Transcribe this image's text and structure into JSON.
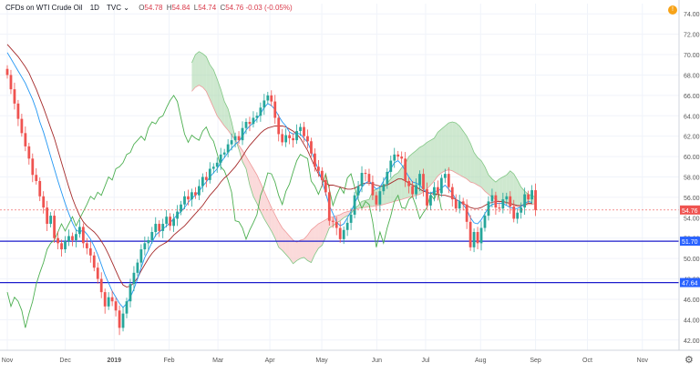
{
  "header": {
    "symbol": "CFDs on WTI Crude Oil",
    "interval": "1D",
    "source": "TVC",
    "open_label": "O",
    "open": "54.78",
    "high_label": "H",
    "high": "54.84",
    "low_label": "L",
    "low": "54.74",
    "close_label": "C",
    "close": "54.76",
    "change": "-0.03 (-0.05%)",
    "alert_badge": "!"
  },
  "chart_data": {
    "type": "candlestick",
    "ylim": [
      41,
      75
    ],
    "xlim": [
      0,
      104
    ],
    "y_ticks": [
      "74.00",
      "72.00",
      "70.00",
      "68.00",
      "66.00",
      "64.00",
      "62.00",
      "60.00",
      "58.00",
      "56.00",
      "54.00",
      "52.00",
      "50.00",
      "48.00",
      "46.00",
      "44.00",
      "42.00"
    ],
    "x_ticks": [
      {
        "label": "Nov",
        "x": 0
      },
      {
        "label": "Dec",
        "x": 9.5
      },
      {
        "label": "2019",
        "x": 17.5
      },
      {
        "label": "Feb",
        "x": 26.5
      },
      {
        "label": "Mar",
        "x": 34.5
      },
      {
        "label": "Apr",
        "x": 43
      },
      {
        "label": "May",
        "x": 51.5
      },
      {
        "label": "Jun",
        "x": 60.5
      },
      {
        "label": "Jul",
        "x": 68.5
      },
      {
        "label": "Aug",
        "x": 77.5
      },
      {
        "label": "Sep",
        "x": 86.5
      },
      {
        "label": "Oct",
        "x": 95
      },
      {
        "label": "Nov",
        "x": 104
      }
    ],
    "price_labels": [
      {
        "value": 54.76,
        "text": "54.76",
        "color": "#ef5350"
      },
      {
        "value": 51.7,
        "text": "51.70",
        "color": "#2962ff"
      },
      {
        "value": 47.64,
        "text": "47.64",
        "color": "#2962ff"
      }
    ],
    "horizontal_lines": [
      {
        "value": 51.7,
        "color": "#1c1ccc"
      },
      {
        "value": 47.64,
        "color": "#1c1ccc"
      }
    ],
    "close": [
      68.0,
      66.6,
      65.2,
      63.7,
      62.3,
      61.0,
      59.8,
      58.2,
      57.6,
      56.1,
      55.0,
      53.4,
      54.2,
      52.0,
      51.5,
      50.9,
      51.7,
      52.2,
      51.8,
      52.4,
      53.1,
      51.5,
      51.0,
      50.3,
      49.1,
      48.0,
      46.7,
      45.3,
      46.2,
      45.8,
      44.9,
      43.2,
      44.6,
      45.8,
      47.5,
      48.6,
      49.6,
      50.9,
      51.5,
      51.8,
      52.6,
      53.4,
      52.7,
      53.4,
      54.1,
      53.2,
      53.9,
      54.6,
      55.3,
      56.1,
      55.8,
      56.5,
      56.2,
      57.1,
      58.0,
      57.7,
      58.8,
      59.0,
      59.4,
      60.2,
      60.4,
      61.2,
      61.6,
      62.0,
      61.6,
      62.8,
      63.4,
      63.2,
      63.8,
      64.0,
      64.8,
      65.5,
      66.0,
      65.4,
      63.8,
      62.2,
      61.4,
      62.1,
      61.8,
      61.6,
      62.5,
      62.9,
      62.0,
      61.5,
      60.3,
      59.0,
      58.6,
      57.7,
      56.5,
      53.7,
      53.6,
      53.0,
      51.9,
      52.8,
      53.5,
      54.3,
      56.2,
      57.1,
      58.4,
      58.3,
      57.5,
      56.2,
      55.3,
      56.6,
      57.3,
      58.5,
      59.6,
      60.2,
      60.0,
      59.8,
      57.6,
      57.1,
      56.3,
      57.2,
      58.3,
      56.8,
      55.2,
      56.2,
      57.0,
      56.4,
      57.9,
      58.3,
      57.0,
      55.8,
      54.9,
      55.6,
      55.3,
      53.6,
      51.1,
      52.6,
      51.5,
      53.0,
      54.2,
      55.6,
      56.2,
      55.0,
      54.9,
      55.8,
      56.1,
      55.1,
      53.9,
      54.5,
      55.0,
      56.3,
      55.8,
      56.7,
      54.76
    ],
    "ichimoku_offset": 26,
    "senkou_a": [
      69.2,
      70.0,
      70.3,
      70.1,
      69.8,
      69.0,
      68.5,
      67.6,
      66.6,
      65.4,
      64.7,
      63.4,
      61.8,
      60.7,
      59.5,
      58.8,
      57.2,
      56.1,
      55.4,
      54.6,
      53.9,
      53.3,
      52.7,
      52.0,
      51.1,
      50.8,
      50.4,
      50.0,
      49.5,
      49.8,
      50.0,
      50.1,
      49.8,
      49.6,
      50.4,
      51.0,
      51.3,
      52.1,
      53.0,
      53.2,
      53.5,
      53.7,
      54.0,
      54.2,
      54.4,
      54.9,
      55.2,
      55.6,
      55.7,
      55.8,
      56.6,
      56.8,
      57.0,
      57.1,
      57.4,
      57.8,
      58.2,
      58.4,
      58.9,
      59.3,
      60.0,
      60.3,
      60.6,
      60.9,
      61.1,
      61.4,
      61.6,
      61.8,
      62.4,
      62.7,
      63.0,
      63.3,
      63.4,
      63.3,
      63.0,
      62.5,
      62.0,
      61.3,
      60.4,
      59.9,
      59.6,
      59.0,
      58.2,
      57.8,
      57.5,
      57.8,
      58.0,
      58.2,
      58.6,
      58.3,
      57.7,
      57.0,
      56.6,
      56.3,
      56.2,
      56.0
    ],
    "senkou_b": [
      66.4,
      66.8,
      67.0,
      66.8,
      66.4,
      65.6,
      64.8,
      64.0,
      63.5,
      63.0,
      62.6,
      62.1,
      61.6,
      61.1,
      60.6,
      60.0,
      59.4,
      58.8,
      58.2,
      57.4,
      56.6,
      55.8,
      55.0,
      54.3,
      53.6,
      53.0,
      52.6,
      52.2,
      51.8,
      51.6,
      51.8,
      51.9,
      52.3,
      52.8,
      53.1,
      53.4,
      53.6,
      53.8,
      54.0,
      54.1,
      54.2,
      54.3,
      54.5,
      54.6,
      54.7,
      54.8,
      54.9,
      55.0,
      55.0,
      55.1,
      55.1,
      55.2,
      55.2,
      55.3,
      55.4,
      55.5,
      55.6,
      55.7,
      55.8,
      55.9,
      56.0,
      56.1,
      56.2,
      56.3,
      56.5,
      56.8,
      57.2,
      57.6,
      58.1,
      58.4,
      58.6,
      58.7,
      58.6,
      58.4,
      58.2,
      58.0,
      57.8,
      57.5,
      57.4,
      57.2,
      57.0,
      56.6,
      56.3,
      56.0,
      55.8,
      55.6,
      55.5,
      55.4,
      55.3,
      55.2,
      55.1,
      55.1,
      55.2,
      55.3,
      55.3,
      55.4
    ],
    "tenkan": [
      70.2,
      69.6,
      69.0,
      68.4,
      67.8,
      67.2,
      66.4,
      65.6,
      64.6,
      63.4,
      62.4,
      61.2,
      60.0,
      58.8,
      57.6,
      56.5,
      55.4,
      54.4,
      53.5,
      52.8,
      52.6,
      52.8,
      52.4,
      51.9,
      51.2,
      50.4,
      49.4,
      48.4,
      47.6,
      46.8,
      46.2,
      45.6,
      45.2,
      45.6,
      46.2,
      47.0,
      48.0,
      49.1,
      50.1,
      50.8,
      51.6,
      52.3,
      52.6,
      52.9,
      53.2,
      53.5,
      53.9,
      54.3,
      54.6,
      55.0,
      55.5,
      55.9,
      56.2,
      56.6,
      57.1,
      57.5,
      58.0,
      58.4,
      58.8,
      59.4,
      59.9,
      60.4,
      60.8,
      61.2,
      61.5,
      62.0,
      62.6,
      63.0,
      63.3,
      63.7,
      64.2,
      64.8,
      65.2,
      65.0,
      64.6,
      64.0,
      63.4,
      63.0,
      62.4,
      62.2,
      62.3,
      62.2,
      61.8,
      61.4,
      60.6,
      59.6,
      58.7,
      57.6,
      56.4,
      55.2,
      54.4,
      53.6,
      53.2,
      53.4,
      54.0,
      54.6,
      55.4,
      56.2,
      57.0,
      57.4,
      57.6,
      57.2,
      56.8,
      57.0,
      57.6,
      58.2,
      58.8,
      59.4,
      59.6,
      59.2,
      58.6,
      58.0,
      57.5,
      57.4,
      57.2,
      56.8,
      56.4,
      56.4,
      56.6,
      56.6,
      56.9,
      57.2,
      56.8,
      56.4,
      55.8,
      55.6,
      55.3,
      54.8,
      54.0,
      53.5,
      53.4,
      53.8,
      54.4,
      55.0,
      55.3,
      55.4,
      55.4,
      55.4,
      55.2,
      55.0,
      54.9,
      54.9,
      55.1,
      55.4,
      55.6,
      55.5
    ],
    "kijun": [
      71.0,
      70.6,
      70.2,
      69.8,
      69.3,
      68.8,
      68.2,
      67.4,
      66.6,
      65.7,
      64.8,
      63.8,
      62.8,
      61.8,
      60.6,
      59.4,
      58.2,
      57.0,
      55.9,
      55.0,
      54.2,
      53.6,
      53.2,
      52.9,
      52.6,
      52.2,
      51.7,
      51.1,
      50.4,
      49.6,
      48.8,
      48.0,
      47.4,
      47.2,
      47.3,
      47.6,
      48.1,
      48.8,
      49.4,
      50.0,
      50.5,
      50.9,
      51.2,
      51.4,
      51.6,
      51.9,
      52.3,
      52.6,
      52.9,
      53.2,
      53.6,
      54.0,
      54.4,
      54.8,
      55.2,
      55.7,
      56.2,
      56.6,
      57.0,
      57.5,
      57.9,
      58.2,
      58.6,
      59.0,
      59.5,
      60.0,
      60.6,
      61.1,
      61.5,
      61.9,
      62.3,
      62.6,
      62.8,
      62.9,
      63.0,
      63.0,
      63.0,
      62.9,
      62.7,
      62.5,
      62.2,
      61.8,
      61.2,
      60.6,
      59.8,
      59.0,
      58.3,
      57.8,
      57.4,
      57.2,
      57.2,
      57.1,
      57.0,
      56.9,
      56.8,
      56.8,
      56.9,
      57.1,
      57.3,
      57.4,
      57.4,
      57.3,
      57.2,
      57.1,
      57.1,
      57.2,
      57.4,
      57.6,
      57.8,
      57.8,
      57.6,
      57.4,
      57.2,
      57.0,
      56.8,
      56.6,
      56.5,
      56.4,
      56.3,
      56.3,
      56.2,
      56.2,
      56.1,
      56.0,
      55.8,
      55.6,
      55.4,
      55.2,
      55.0,
      54.9,
      54.9,
      55.0,
      55.2,
      55.4,
      55.5,
      55.6,
      55.6,
      55.6,
      55.5,
      55.4,
      55.3,
      55.2,
      55.2,
      55.3,
      55.4,
      55.4
    ],
    "chikou_lag": 26,
    "colors": {
      "up": "#26a69a",
      "down": "#ef5350",
      "tenkan": "#2196f3",
      "kijun": "#a52a2a",
      "chikou": "#4caf50",
      "cloud_up": "#a5d6a7",
      "cloud_down": "#f8bbbb",
      "grid": "#f0f3fa",
      "axis_text": "#555555"
    }
  }
}
